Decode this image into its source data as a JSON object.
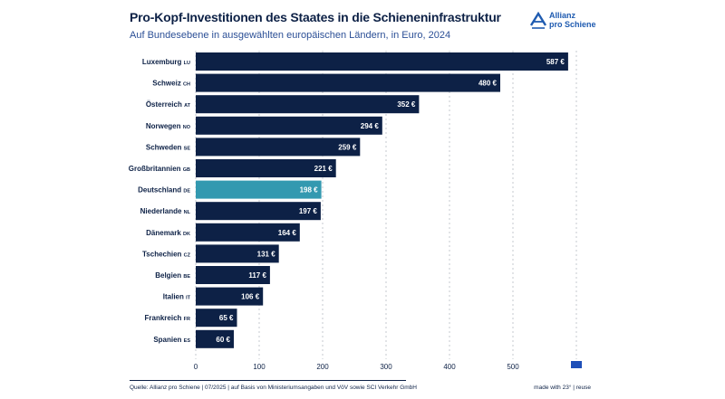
{
  "header": {
    "title": "Pro-Kopf-Investitionen des Staates in die Schieneninfrastruktur",
    "subtitle": "Auf Bundesebene in ausgewählten europäischen Ländern, in Euro, 2024"
  },
  "logo": {
    "line1": "Allianz",
    "line2": "pro Schiene",
    "icon": "allianz-pro-schiene-logo-icon"
  },
  "footer": {
    "source": "Quelle: Allianz pro Schiene | 07/2025 | auf Basis von Ministeriumsangaben und VöV sowie SCI Verkehr GmbH",
    "credit": "made with 23° | reuse"
  },
  "colors": {
    "bar": "#0d2146",
    "highlight": "#3399b0",
    "text": "#0d2146",
    "subtitle": "#2b4f96",
    "grid": "#b8bcc4",
    "eu_flag": "#1f4fb8"
  },
  "chart_data": {
    "type": "bar",
    "orientation": "horizontal",
    "title": "Pro-Kopf-Investitionen des Staates in die Schieneninfrastruktur",
    "subtitle": "Auf Bundesebene in ausgewählten europäischen Ländern, in Euro, 2024",
    "categories": [
      {
        "name": "Luxemburg",
        "code": "LU"
      },
      {
        "name": "Schweiz",
        "code": "CH"
      },
      {
        "name": "Österreich",
        "code": "AT"
      },
      {
        "name": "Norwegen",
        "code": "NO"
      },
      {
        "name": "Schweden",
        "code": "SE"
      },
      {
        "name": "Großbritannien",
        "code": "GB"
      },
      {
        "name": "Deutschland",
        "code": "DE"
      },
      {
        "name": "Niederlande",
        "code": "NL"
      },
      {
        "name": "Dänemark",
        "code": "DK"
      },
      {
        "name": "Tschechien",
        "code": "CZ"
      },
      {
        "name": "Belgien",
        "code": "BE"
      },
      {
        "name": "Italien",
        "code": "IT"
      },
      {
        "name": "Frankreich",
        "code": "FR"
      },
      {
        "name": "Spanien",
        "code": "ES"
      }
    ],
    "values": [
      587,
      480,
      352,
      294,
      259,
      221,
      198,
      197,
      164,
      131,
      117,
      106,
      65,
      60
    ],
    "value_labels": [
      "587 €",
      "480 €",
      "352 €",
      "294 €",
      "259 €",
      "221 €",
      "198 €",
      "197 €",
      "164 €",
      "131 €",
      "117 €",
      "106 €",
      "65 €",
      "60 €"
    ],
    "highlight": "DE",
    "xlim": [
      0,
      600
    ],
    "xticks": [
      0,
      100,
      200,
      300,
      400,
      500
    ],
    "xtick_labels": [
      "0",
      "100",
      "200",
      "300",
      "400",
      "500"
    ],
    "grid": "vertical dashed",
    "xlabel": "",
    "ylabel": ""
  }
}
